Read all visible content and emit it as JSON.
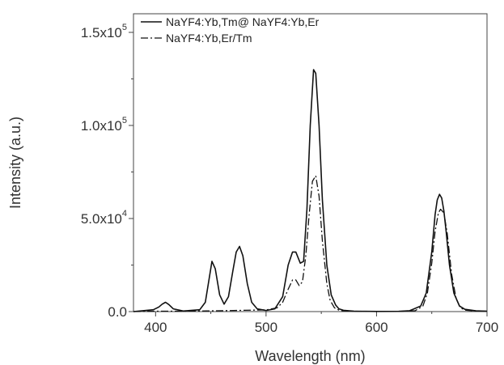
{
  "chart_data": {
    "type": "line",
    "xlabel": "Wavelength (nm)",
    "ylabel": "Intensity (a.u.)",
    "xlim": [
      380,
      700
    ],
    "ylim": [
      0,
      160000
    ],
    "x_ticks": [
      {
        "value": 400,
        "label": "400"
      },
      {
        "value": 500,
        "label": "500"
      },
      {
        "value": 600,
        "label": "600"
      },
      {
        "value": 700,
        "label": "700"
      }
    ],
    "y_ticks": [
      {
        "value": 0,
        "mant": "0.0",
        "exp": ""
      },
      {
        "value": 50000,
        "mant": "5.0x10",
        "exp": "4"
      },
      {
        "value": 100000,
        "mant": "1.0x10",
        "exp": "5"
      },
      {
        "value": 150000,
        "mant": "1.5x10",
        "exp": "5"
      }
    ],
    "legend_position": "top-left",
    "grid": false,
    "series": [
      {
        "name": "NaYF4:Yb,Tm@ NaYF4:Yb,Er",
        "style": "solid",
        "color": "#111111",
        "x": [
          380,
          398,
          403,
          406,
          409,
          412,
          416,
          425,
          440,
          445,
          448,
          451,
          454,
          458,
          462,
          466,
          470,
          473,
          476,
          479,
          483,
          487,
          492,
          500,
          508,
          515,
          520,
          524,
          527,
          531,
          534,
          537,
          540,
          543,
          545,
          548,
          551,
          555,
          559,
          563,
          566,
          570,
          580,
          600,
          620,
          630,
          640,
          645,
          650,
          653,
          655,
          657,
          659,
          661,
          663,
          666,
          670,
          675,
          680,
          690,
          700
        ],
        "y": [
          0,
          1000,
          2500,
          4000,
          5000,
          3800,
          1500,
          300,
          1000,
          5000,
          16000,
          27000,
          23000,
          9000,
          4000,
          8000,
          22000,
          32000,
          35000,
          30000,
          15000,
          5000,
          1500,
          600,
          1500,
          8000,
          25000,
          32000,
          32000,
          26000,
          27000,
          55000,
          100000,
          130000,
          128000,
          100000,
          60000,
          25000,
          9000,
          3500,
          1500,
          700,
          200,
          100,
          150,
          500,
          3000,
          10000,
          32000,
          52000,
          60000,
          63000,
          61000,
          54000,
          43000,
          25000,
          10000,
          3000,
          1200,
          400,
          200
        ]
      },
      {
        "name": "NaYF4:Yb,Er/Tm",
        "style": "dashdot",
        "color": "#111111",
        "x": [
          380,
          400,
          420,
          440,
          460,
          480,
          500,
          510,
          515,
          520,
          524,
          527,
          530,
          533,
          536,
          539,
          542,
          545,
          548,
          551,
          555,
          558,
          562,
          566,
          570,
          580,
          600,
          620,
          635,
          642,
          646,
          650,
          653,
          656,
          658,
          661,
          664,
          668,
          672,
          676,
          680,
          690,
          700
        ],
        "y": [
          0,
          200,
          200,
          300,
          500,
          700,
          900,
          2000,
          5000,
          12000,
          17000,
          17000,
          14000,
          16000,
          30000,
          52000,
          70000,
          73000,
          62000,
          38000,
          15000,
          6000,
          2000,
          800,
          400,
          200,
          100,
          100,
          500,
          3000,
          10000,
          26000,
          43000,
          53000,
          55000,
          53000,
          42000,
          20000,
          7000,
          2000,
          800,
          300,
          200
        ]
      }
    ]
  }
}
